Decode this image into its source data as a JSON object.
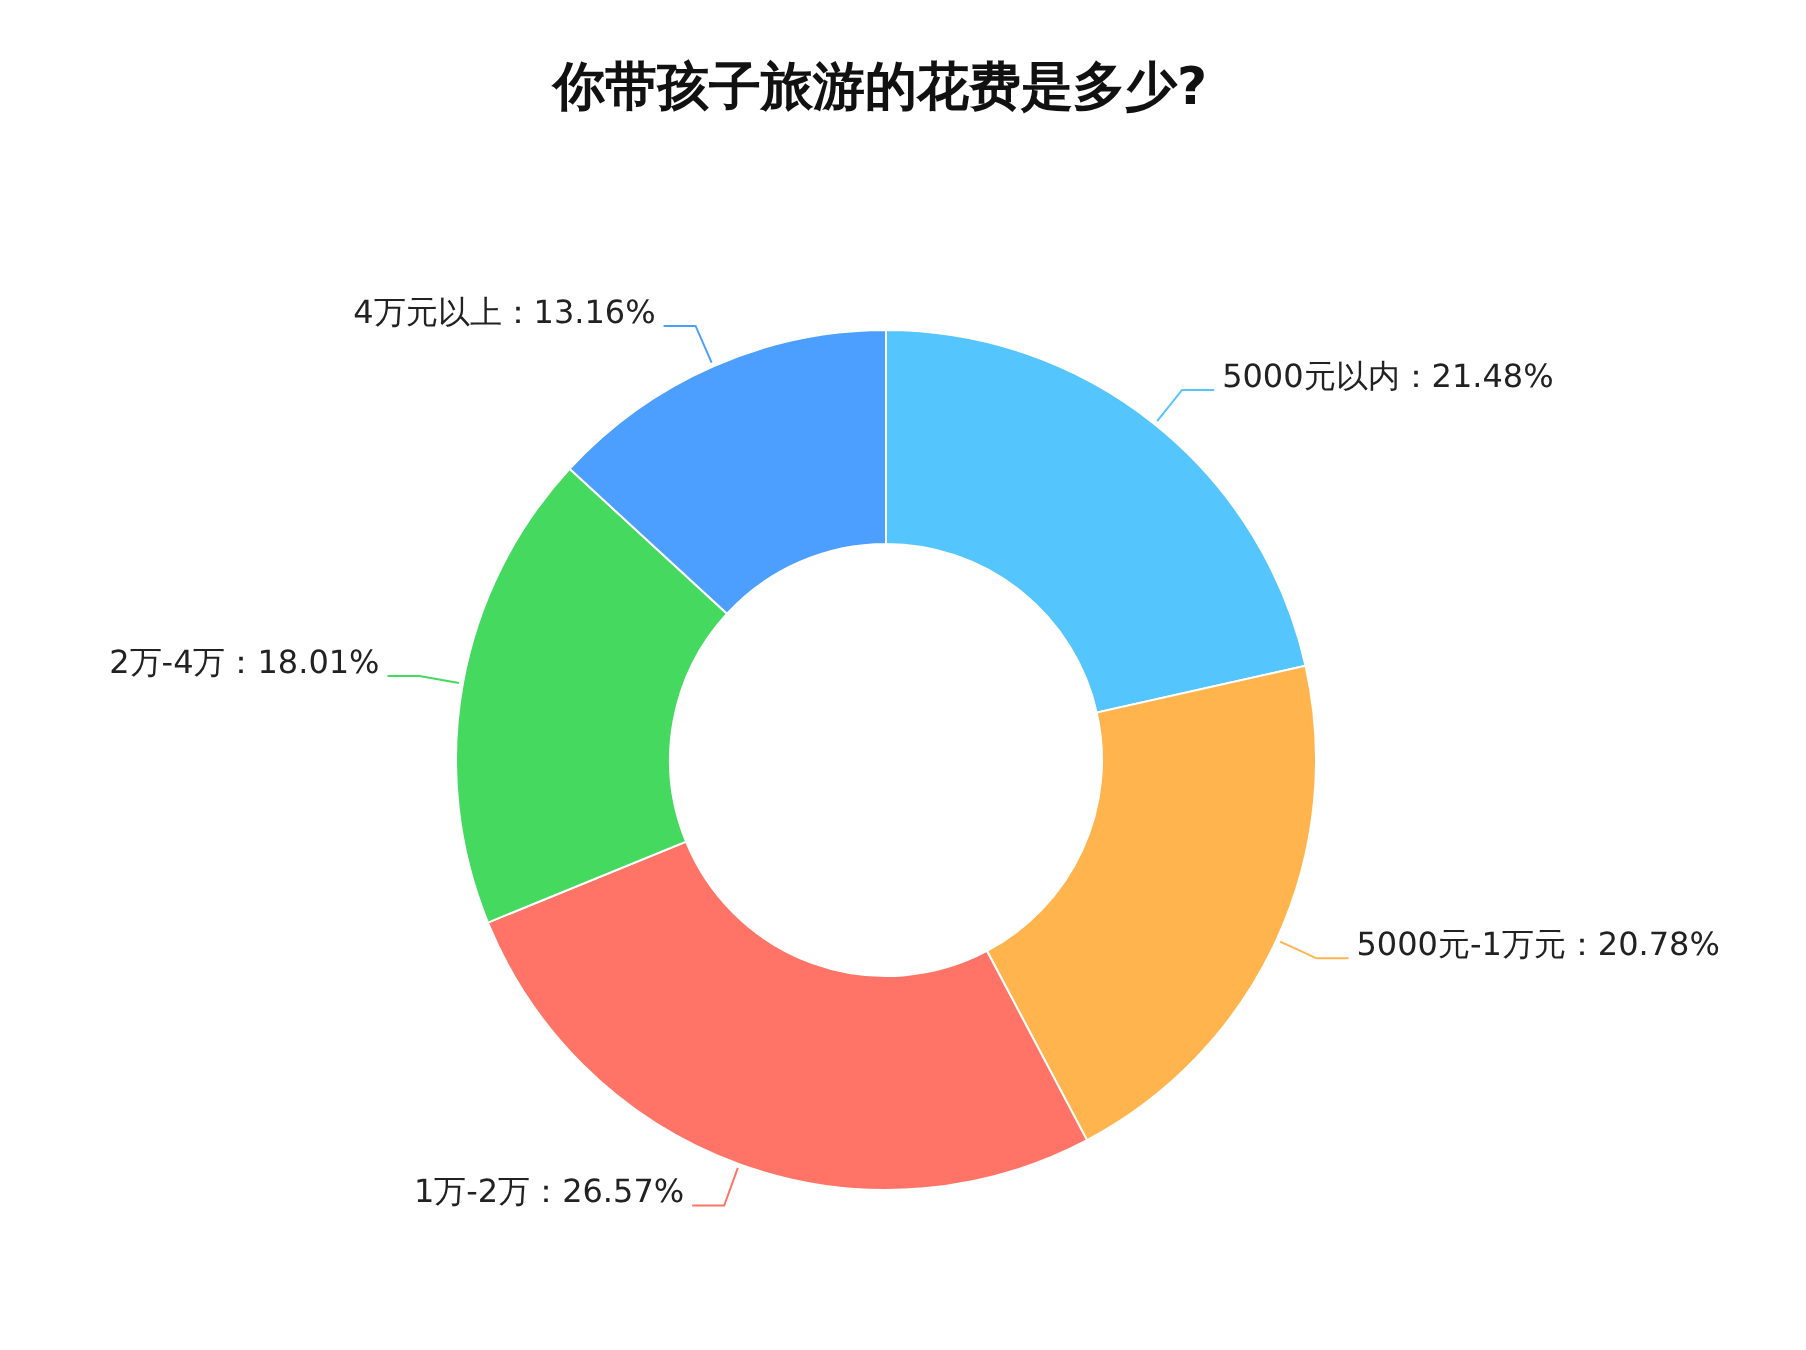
{
  "chart_data": {
    "type": "donut",
    "title": "你带孩子旅游的花费是多少?",
    "categories": [
      "5000元以内",
      "5000元-1万元",
      "1万-2万",
      "2万-4万",
      "4万元以上"
    ],
    "values": [
      21.48,
      20.78,
      26.57,
      18.01,
      13.16
    ],
    "value_labels": [
      "21.48%",
      "20.78%",
      "26.57%",
      "18.01%",
      "13.16%"
    ],
    "colors": [
      "#55c6fd",
      "#ffb44e",
      "#ff7467",
      "#45d960",
      "#4c9fff"
    ]
  }
}
